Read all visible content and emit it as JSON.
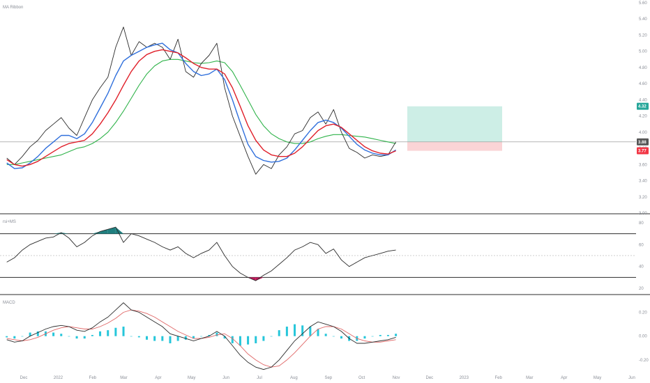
{
  "colors": {
    "price": "#2b2b2b",
    "ma_fast": "#2f6fdc",
    "ma_mid": "#e0202a",
    "ma_slow": "#2fb34a",
    "rsi": "#2b2b2b",
    "rsi_fill_over": "#1f7f7f",
    "rsi_fill_under": "#c2185b",
    "macd": "#2b2b2b",
    "signal": "#e06666",
    "hist_pos": "#26c6da",
    "hist_neg": "#26c6da",
    "target_zone": "#cdeee6",
    "stop_zone": "#fad4d6",
    "current_price_badge": "#555555",
    "target_badge": "#26a69a",
    "stop_badge": "#f23645"
  },
  "chart_data": [
    {
      "type": "line",
      "pane": "price",
      "title": "MA Ribbon",
      "x": [
        "2021-11-22",
        "2021-11-29",
        "2021-12-06",
        "2021-12-13",
        "2021-12-20",
        "2021-12-27",
        "2022-01-03",
        "2022-01-10",
        "2022-01-17",
        "2022-01-24",
        "2022-01-31",
        "2022-02-07",
        "2022-02-14",
        "2022-02-21",
        "2022-02-28",
        "2022-03-07",
        "2022-03-14",
        "2022-03-21",
        "2022-03-28",
        "2022-04-04",
        "2022-04-11",
        "2022-04-18",
        "2022-04-25",
        "2022-05-02",
        "2022-05-09",
        "2022-05-16",
        "2022-05-23",
        "2022-05-30",
        "2022-06-06",
        "2022-06-13",
        "2022-06-20",
        "2022-06-27",
        "2022-07-04",
        "2022-07-11",
        "2022-07-18",
        "2022-07-25",
        "2022-08-01",
        "2022-08-08",
        "2022-08-15",
        "2022-08-22",
        "2022-08-29",
        "2022-09-05",
        "2022-09-12",
        "2022-09-19",
        "2022-09-26",
        "2022-10-03",
        "2022-10-10",
        "2022-10-17",
        "2022-10-24",
        "2022-10-31",
        "2022-11-07"
      ],
      "series": [
        {
          "name": "",
          "role": "price",
          "values": [
            3.68,
            3.6,
            3.7,
            3.82,
            3.9,
            4.02,
            4.1,
            4.18,
            4.05,
            3.96,
            4.18,
            4.4,
            4.55,
            4.68,
            5.05,
            5.3,
            4.95,
            5.12,
            5.05,
            5.1,
            5.05,
            4.9,
            5.15,
            4.75,
            4.68,
            4.85,
            4.95,
            5.1,
            4.55,
            4.2,
            3.95,
            3.7,
            3.48,
            3.6,
            3.55,
            3.72,
            3.82,
            3.98,
            4.02,
            4.18,
            4.25,
            4.1,
            4.28,
            4.0,
            3.8,
            3.75,
            3.68,
            3.72,
            3.7,
            3.72,
            3.88
          ]
        },
        {
          "name": "",
          "role": "ma_fast",
          "values": [
            3.62,
            3.55,
            3.56,
            3.62,
            3.7,
            3.8,
            3.88,
            3.96,
            3.96,
            3.92,
            3.98,
            4.12,
            4.3,
            4.48,
            4.7,
            4.88,
            4.95,
            5.0,
            5.05,
            5.08,
            5.1,
            5.02,
            4.98,
            4.85,
            4.75,
            4.7,
            4.72,
            4.78,
            4.65,
            4.4,
            4.12,
            3.85,
            3.7,
            3.65,
            3.63,
            3.64,
            3.68,
            3.78,
            3.9,
            4.02,
            4.12,
            4.15,
            4.12,
            4.05,
            3.95,
            3.85,
            3.78,
            3.74,
            3.72,
            3.72,
            3.78
          ]
        },
        {
          "name": "",
          "role": "ma_mid",
          "values": [
            3.66,
            3.6,
            3.58,
            3.6,
            3.64,
            3.7,
            3.76,
            3.82,
            3.86,
            3.88,
            3.9,
            3.98,
            4.1,
            4.24,
            4.4,
            4.58,
            4.75,
            4.88,
            4.96,
            5.0,
            5.02,
            5.0,
            4.98,
            4.92,
            4.85,
            4.8,
            4.78,
            4.78,
            4.72,
            4.55,
            4.32,
            4.08,
            3.9,
            3.78,
            3.72,
            3.7,
            3.7,
            3.74,
            3.82,
            3.92,
            4.02,
            4.08,
            4.1,
            4.06,
            3.98,
            3.9,
            3.82,
            3.77,
            3.74,
            3.73,
            3.77
          ]
        },
        {
          "name": "",
          "role": "ma_slow",
          "values": [
            3.6,
            3.6,
            3.62,
            3.64,
            3.66,
            3.68,
            3.7,
            3.72,
            3.76,
            3.8,
            3.82,
            3.86,
            3.92,
            4.0,
            4.12,
            4.26,
            4.42,
            4.58,
            4.72,
            4.82,
            4.88,
            4.9,
            4.9,
            4.88,
            4.86,
            4.85,
            4.86,
            4.88,
            4.86,
            4.75,
            4.58,
            4.4,
            4.22,
            4.08,
            3.98,
            3.92,
            3.88,
            3.86,
            3.86,
            3.88,
            3.92,
            3.95,
            3.97,
            3.97,
            3.96,
            3.95,
            3.94,
            3.92,
            3.9,
            3.88,
            3.86
          ]
        }
      ],
      "ylim": [
        3.0,
        5.6
      ],
      "y_ticks": [
        "3.00",
        "3.20",
        "3.40",
        "3.60",
        "3.80",
        "4.00",
        "4.20",
        "4.40",
        "4.60",
        "4.80",
        "5.00",
        "5.20",
        "5.40",
        "5.60"
      ],
      "current_price": 3.88,
      "position": {
        "entry": 3.88,
        "target": 4.32,
        "stop": 3.77
      },
      "badges": {
        "target": "4.32",
        "current": "3.88",
        "stop": "3.77"
      }
    },
    {
      "type": "line",
      "pane": "rsi",
      "title": "rsi+MS",
      "x_ref": "price",
      "values": [
        44,
        48,
        55,
        60,
        63,
        66,
        67,
        71,
        66,
        58,
        62,
        68,
        72,
        74,
        76,
        62,
        70,
        68,
        65,
        62,
        58,
        55,
        58,
        52,
        48,
        52,
        55,
        62,
        50,
        40,
        34,
        30,
        27,
        32,
        36,
        42,
        48,
        55,
        58,
        62,
        60,
        52,
        56,
        46,
        40,
        44,
        48,
        50,
        52,
        54,
        55
      ],
      "ylim": [
        15,
        85
      ],
      "y_ticks": [
        "20",
        "40",
        "60",
        "80"
      ],
      "levels": [
        70,
        30
      ],
      "mid": 50
    },
    {
      "type": "line",
      "pane": "macd",
      "title": "MACD",
      "x_ref": "price",
      "series": [
        {
          "name": "",
          "role": "macd",
          "values": [
            -0.03,
            -0.05,
            -0.04,
            0.0,
            0.03,
            0.06,
            0.08,
            0.09,
            0.08,
            0.05,
            0.04,
            0.07,
            0.12,
            0.16,
            0.22,
            0.28,
            0.22,
            0.2,
            0.16,
            0.12,
            0.08,
            0.02,
            0.0,
            -0.02,
            -0.04,
            -0.02,
            0.0,
            0.04,
            0.0,
            -0.08,
            -0.16,
            -0.22,
            -0.26,
            -0.28,
            -0.26,
            -0.2,
            -0.12,
            -0.04,
            0.02,
            0.08,
            0.12,
            0.1,
            0.08,
            0.04,
            -0.02,
            -0.06,
            -0.06,
            -0.05,
            -0.04,
            -0.03,
            -0.01
          ]
        },
        {
          "name": "",
          "role": "signal",
          "values": [
            -0.02,
            -0.03,
            -0.04,
            -0.03,
            -0.01,
            0.02,
            0.05,
            0.07,
            0.08,
            0.07,
            0.06,
            0.06,
            0.08,
            0.11,
            0.15,
            0.2,
            0.22,
            0.21,
            0.19,
            0.16,
            0.12,
            0.08,
            0.04,
            0.01,
            -0.02,
            -0.02,
            -0.01,
            0.01,
            0.02,
            -0.02,
            -0.08,
            -0.15,
            -0.2,
            -0.24,
            -0.26,
            -0.25,
            -0.2,
            -0.14,
            -0.07,
            0.0,
            0.06,
            0.08,
            0.08,
            0.06,
            0.02,
            -0.02,
            -0.04,
            -0.05,
            -0.05,
            -0.04,
            -0.03
          ]
        }
      ],
      "histogram": [
        -0.01,
        -0.02,
        0.0,
        0.03,
        0.04,
        0.04,
        0.03,
        0.02,
        0.0,
        -0.02,
        -0.02,
        0.01,
        0.04,
        0.05,
        0.07,
        0.08,
        0.0,
        -0.01,
        -0.03,
        -0.04,
        -0.04,
        -0.06,
        -0.04,
        -0.03,
        -0.02,
        0.0,
        0.01,
        0.03,
        -0.02,
        -0.06,
        -0.08,
        -0.07,
        -0.06,
        -0.04,
        0.0,
        0.05,
        0.08,
        0.1,
        0.09,
        0.08,
        0.06,
        0.02,
        0.0,
        -0.02,
        -0.04,
        -0.04,
        -0.02,
        0.0,
        0.01,
        0.01,
        0.02
      ],
      "ylim": [
        -0.3,
        0.32
      ],
      "y_ticks": [
        "0.20",
        "0.00",
        "-0.20"
      ]
    }
  ],
  "x_axis": {
    "labels": [
      "Dec",
      "2022",
      "Feb",
      "Mar",
      "Apr",
      "May",
      "Jun",
      "Jul",
      "Aug",
      "Sep",
      "Oct",
      "Nov",
      "Dec",
      "2023",
      "Feb",
      "Mar",
      "Apr",
      "May",
      "Jun"
    ],
    "dates": [
      "2021-12-01",
      "2022-01-01",
      "2022-02-01",
      "2022-03-01",
      "2022-04-01",
      "2022-05-01",
      "2022-06-01",
      "2022-07-01",
      "2022-08-01",
      "2022-09-01",
      "2022-10-01",
      "2022-11-01",
      "2022-12-01",
      "2023-01-01",
      "2023-02-01",
      "2023-03-01",
      "2023-04-01",
      "2023-05-01",
      "2023-06-01"
    ]
  }
}
